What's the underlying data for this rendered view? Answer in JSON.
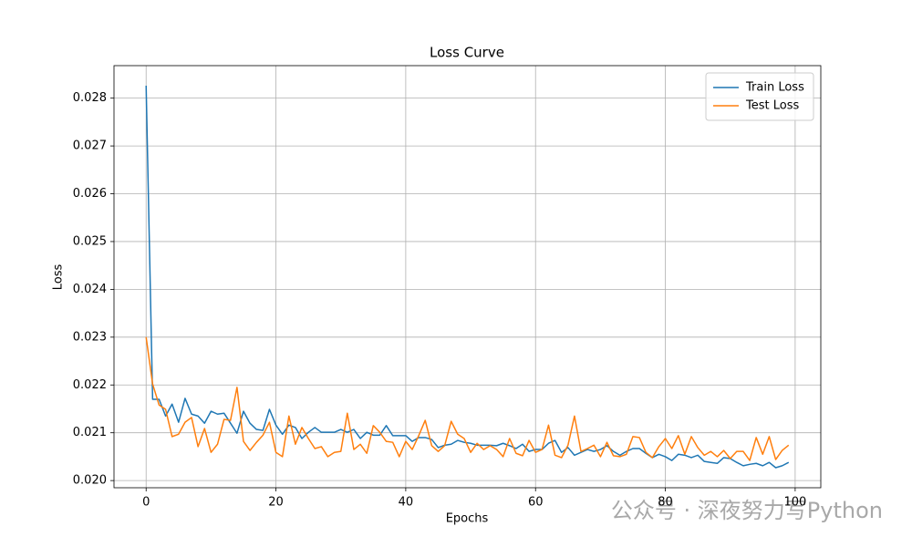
{
  "chart_data": {
    "type": "line",
    "title": "Loss Curve",
    "x_label": "Epochs",
    "y_label": "Loss",
    "watermark": "公众号 · 深夜努力写Python",
    "x": [
      0,
      1,
      2,
      3,
      4,
      5,
      6,
      7,
      8,
      9,
      10,
      11,
      12,
      13,
      14,
      15,
      16,
      17,
      18,
      19,
      20,
      21,
      22,
      23,
      24,
      25,
      26,
      27,
      28,
      29,
      30,
      31,
      32,
      33,
      34,
      35,
      36,
      37,
      38,
      39,
      40,
      41,
      42,
      43,
      44,
      45,
      46,
      47,
      48,
      49,
      50,
      51,
      52,
      53,
      54,
      55,
      56,
      57,
      58,
      59,
      60,
      61,
      62,
      63,
      64,
      65,
      66,
      67,
      68,
      69,
      70,
      71,
      72,
      73,
      74,
      75,
      76,
      77,
      78,
      79,
      80,
      81,
      82,
      83,
      84,
      85,
      86,
      87,
      88,
      89,
      90,
      91,
      92,
      93,
      94,
      95,
      96,
      97,
      98,
      99
    ],
    "series": [
      {
        "name": "Train Loss",
        "color": "#1f77b4",
        "values": [
          0.02826,
          0.0217,
          0.0217,
          0.02135,
          0.0216,
          0.02122,
          0.02172,
          0.02139,
          0.02135,
          0.0212,
          0.02145,
          0.02139,
          0.02141,
          0.0212,
          0.02099,
          0.02145,
          0.0212,
          0.02107,
          0.02105,
          0.02149,
          0.02116,
          0.02097,
          0.02116,
          0.02111,
          0.02088,
          0.02101,
          0.02111,
          0.02101,
          0.02101,
          0.02101,
          0.02107,
          0.02101,
          0.02107,
          0.02088,
          0.02101,
          0.02095,
          0.02095,
          0.02115,
          0.02094,
          0.02094,
          0.02094,
          0.02082,
          0.0209,
          0.0209,
          0.02086,
          0.02069,
          0.02074,
          0.02076,
          0.02084,
          0.0208,
          0.02078,
          0.02074,
          0.02074,
          0.02074,
          0.02073,
          0.02078,
          0.02073,
          0.02067,
          0.02076,
          0.02061,
          0.02065,
          0.02065,
          0.02078,
          0.02084,
          0.02059,
          0.02069,
          0.02053,
          0.02059,
          0.02065,
          0.02061,
          0.02065,
          0.02073,
          0.02061,
          0.02053,
          0.02061,
          0.02067,
          0.02067,
          0.02057,
          0.02048,
          0.02055,
          0.0205,
          0.02042,
          0.02055,
          0.02053,
          0.02048,
          0.02053,
          0.0204,
          0.02038,
          0.02036,
          0.02048,
          0.02046,
          0.02038,
          0.02031,
          0.02034,
          0.02036,
          0.02031,
          0.02038,
          0.02027,
          0.02031,
          0.02038
        ]
      },
      {
        "name": "Test Loss",
        "color": "#ff7f0e",
        "values": [
          0.023,
          0.02202,
          0.02158,
          0.02149,
          0.02092,
          0.02097,
          0.02122,
          0.02132,
          0.02071,
          0.02109,
          0.02059,
          0.02076,
          0.02128,
          0.02126,
          0.02195,
          0.02082,
          0.02063,
          0.0208,
          0.02095,
          0.02122,
          0.02059,
          0.0205,
          0.02135,
          0.02076,
          0.02111,
          0.02088,
          0.02067,
          0.02071,
          0.0205,
          0.02059,
          0.02061,
          0.02141,
          0.02065,
          0.02076,
          0.02057,
          0.02115,
          0.02101,
          0.02082,
          0.0208,
          0.0205,
          0.02082,
          0.02065,
          0.02094,
          0.02126,
          0.02073,
          0.02061,
          0.02073,
          0.02124,
          0.02097,
          0.02088,
          0.02059,
          0.02078,
          0.02065,
          0.02073,
          0.02065,
          0.0205,
          0.02088,
          0.02057,
          0.02052,
          0.02084,
          0.02059,
          0.02065,
          0.02116,
          0.02053,
          0.02048,
          0.02074,
          0.02135,
          0.02061,
          0.02067,
          0.02074,
          0.0205,
          0.0208,
          0.02052,
          0.0205,
          0.02055,
          0.02092,
          0.0209,
          0.02059,
          0.02048,
          0.02071,
          0.02088,
          0.02067,
          0.02094,
          0.02055,
          0.02092,
          0.02069,
          0.02053,
          0.02061,
          0.0205,
          0.02063,
          0.02046,
          0.02061,
          0.02061,
          0.02042,
          0.0209,
          0.02055,
          0.02092,
          0.02044,
          0.02063,
          0.02074
        ]
      }
    ],
    "xlim": [
      -4.95,
      103.95
    ],
    "xticks": [
      0,
      20,
      40,
      60,
      80,
      100
    ],
    "ylim": [
      0.01985,
      0.02868
    ],
    "yticks": [
      {
        "value": 0.02,
        "label": "0.020"
      },
      0.021,
      0.022,
      0.023,
      0.024,
      0.025,
      0.026,
      0.027,
      0.028
    ],
    "grid": true,
    "legend": "upper right"
  }
}
